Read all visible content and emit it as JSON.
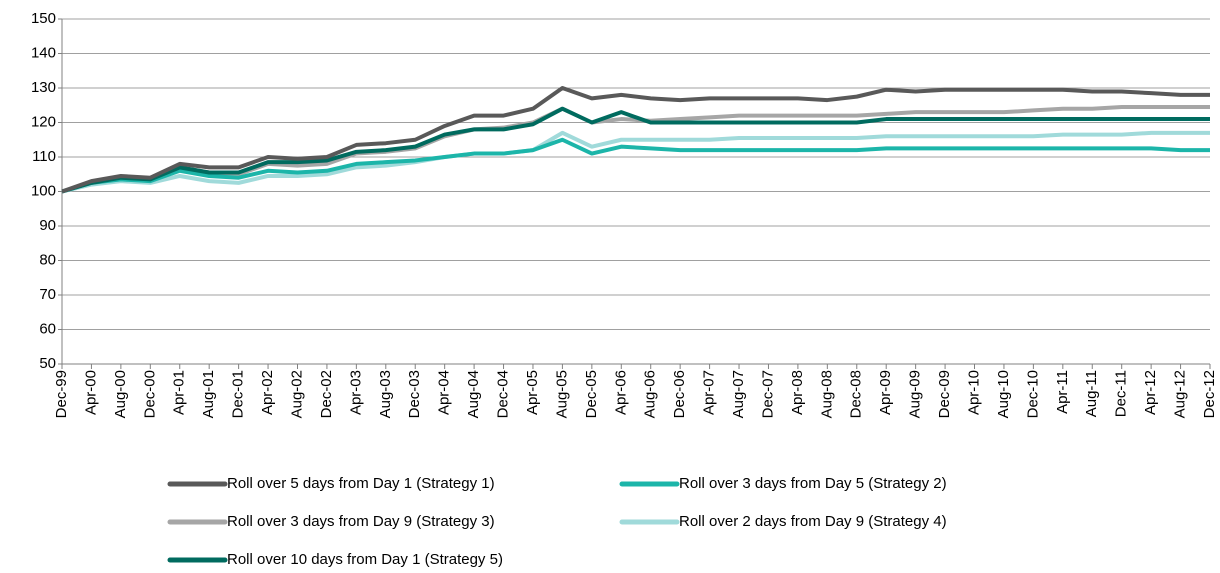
{
  "chart_data": {
    "type": "line",
    "categories": [
      "Dec-99",
      "Apr-00",
      "Aug-00",
      "Dec-00",
      "Apr-01",
      "Aug-01",
      "Dec-01",
      "Apr-02",
      "Aug-02",
      "Dec-02",
      "Apr-03",
      "Aug-03",
      "Dec-03",
      "Apr-04",
      "Aug-04",
      "Dec-04",
      "Apr-05",
      "Aug-05",
      "Dec-05",
      "Apr-06",
      "Aug-06",
      "Dec-06",
      "Apr-07",
      "Aug-07",
      "Dec-07",
      "Apr-08",
      "Aug-08",
      "Dec-08",
      "Apr-09",
      "Aug-09",
      "Dec-09",
      "Apr-10",
      "Aug-10",
      "Dec-10",
      "Apr-11",
      "Aug-11",
      "Dec-11",
      "Apr-12",
      "Aug-12",
      "Dec-12"
    ],
    "series": [
      {
        "name": "Roll over 5 days from Day 1 (Strategy 1)",
        "color": "#595959",
        "values": [
          100,
          103,
          104.5,
          104,
          108,
          107,
          107,
          110,
          109.5,
          110,
          113.5,
          114,
          115,
          119,
          122,
          122,
          124,
          130,
          127,
          128,
          127,
          126.5,
          127,
          127,
          127,
          127,
          126.5,
          127.5,
          129.5,
          129,
          129.5,
          129.5,
          129.5,
          129.5,
          129.5,
          129,
          129,
          128.5,
          128,
          128
        ]
      },
      {
        "name": "Roll over 3 days from Day 5 (Strategy 2)",
        "color": "#1cb5a9",
        "values": [
          100,
          102.5,
          103.5,
          103,
          106,
          104.5,
          104,
          106,
          105.5,
          106,
          108,
          108.5,
          109,
          110,
          111,
          111,
          112,
          115,
          111,
          113,
          112.5,
          112,
          112,
          112,
          112,
          112,
          112,
          112,
          112.5,
          112.5,
          112.5,
          112.5,
          112.5,
          112.5,
          112.5,
          112.5,
          112.5,
          112.5,
          112,
          112
        ]
      },
      {
        "name": "Roll over 3 days from Day 9 (Strategy 3)",
        "color": "#a6a6a6",
        "values": [
          100,
          102.5,
          104,
          103.5,
          107,
          105.5,
          105,
          108,
          107.5,
          108,
          111,
          111.5,
          112.5,
          116,
          118,
          118.5,
          120,
          124,
          120,
          121,
          120.5,
          121,
          121.5,
          122,
          122,
          122,
          122,
          122,
          122.5,
          123,
          123,
          123,
          123,
          123.5,
          124,
          124,
          124.5,
          124.5,
          124.5,
          124.5
        ]
      },
      {
        "name": "Roll over 2 days from Day 9 (Strategy 4)",
        "color": "#a0dada",
        "values": [
          100,
          102,
          103,
          102.5,
          104.5,
          103,
          102.5,
          104.5,
          104.5,
          105,
          107,
          107.5,
          108.5,
          110,
          111,
          111,
          112,
          117,
          113,
          115,
          115,
          115,
          115,
          115.5,
          115.5,
          115.5,
          115.5,
          115.5,
          116,
          116,
          116,
          116,
          116,
          116,
          116.5,
          116.5,
          116.5,
          117,
          117,
          117
        ]
      },
      {
        "name": "Roll over 10 days from Day 1 (Strategy 5)",
        "color": "#006b5f",
        "values": [
          100,
          102.5,
          104,
          103.5,
          107,
          105.5,
          105.5,
          108.5,
          108.5,
          109,
          111.5,
          112,
          113,
          116.5,
          118,
          118,
          119.5,
          124,
          120,
          123,
          120,
          120,
          120,
          120,
          120,
          120,
          120,
          120,
          121,
          121,
          121,
          121,
          121,
          121,
          121,
          121,
          121,
          121,
          121,
          121
        ]
      }
    ],
    "ylim": [
      50,
      150
    ],
    "yticks": [
      50,
      60,
      70,
      80,
      90,
      100,
      110,
      120,
      130,
      140,
      150
    ],
    "grid": true
  }
}
